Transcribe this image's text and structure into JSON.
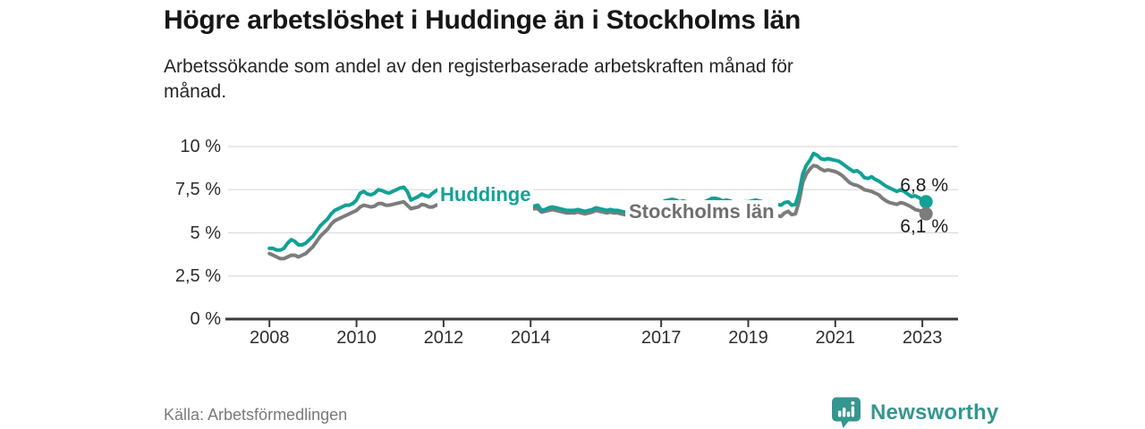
{
  "header": {
    "title": "Högre arbetslöshet i Huddinge än i Stockholms län",
    "subtitle": "Arbetssökande som andel av den registerbaserade arbetskraften månad för månad."
  },
  "footer": {
    "source": "Källa: Arbetsförmedlingen",
    "brand": "Newsworthy"
  },
  "chart_data": {
    "type": "line",
    "title": "Högre arbetslöshet i Huddinge än i Stockholms län",
    "subtitle": "Arbetssökande som andel av den registerbaserade arbetskraften månad för månad.",
    "xlabel": "",
    "ylabel": "",
    "x_unit": "month",
    "x_start_year": 2008,
    "x_end": "2023-02",
    "ylim": [
      0,
      10
    ],
    "grid": true,
    "legend_position": "inline-labels",
    "y_ticks": [
      {
        "label": "0 %",
        "value": 0
      },
      {
        "label": "2,5 %",
        "value": 2.5
      },
      {
        "label": "5 %",
        "value": 5
      },
      {
        "label": "7,5 %",
        "value": 7.5
      },
      {
        "label": "10 %",
        "value": 10
      }
    ],
    "x_ticks": [
      {
        "label": "2008",
        "value": 2008
      },
      {
        "label": "2010",
        "value": 2010
      },
      {
        "label": "2012",
        "value": 2012
      },
      {
        "label": "2014",
        "value": 2014
      },
      {
        "label": "2017",
        "value": 2017
      },
      {
        "label": "2019",
        "value": 2019
      },
      {
        "label": "2021",
        "value": 2021
      },
      {
        "label": "2023",
        "value": 2023
      }
    ],
    "series": [
      {
        "name": "Huddinge",
        "color": "#12A195",
        "end_label": "6,8 %",
        "end_value": 6.8,
        "values": [
          4.1,
          4.1,
          4.0,
          4.0,
          4.1,
          4.4,
          4.6,
          4.5,
          4.3,
          4.3,
          4.4,
          4.6,
          4.8,
          5.1,
          5.4,
          5.6,
          5.8,
          6.1,
          6.3,
          6.4,
          6.5,
          6.6,
          6.6,
          6.7,
          6.9,
          7.3,
          7.4,
          7.25,
          7.2,
          7.3,
          7.5,
          7.45,
          7.35,
          7.3,
          7.4,
          7.5,
          7.6,
          7.65,
          7.4,
          6.9,
          7.0,
          7.1,
          7.25,
          7.15,
          7.1,
          7.3,
          7.45,
          7.55,
          7.3,
          7.1,
          6.95,
          7.0,
          7.05,
          7.0,
          7.1,
          7.05,
          6.95,
          6.9,
          6.85,
          6.8,
          6.8,
          6.75,
          6.7,
          6.65,
          6.6,
          6.6,
          6.55,
          6.5,
          6.5,
          6.45,
          6.4,
          6.45,
          6.5,
          6.55,
          6.6,
          6.3,
          6.35,
          6.45,
          6.5,
          6.45,
          6.4,
          6.35,
          6.3,
          6.3,
          6.3,
          6.35,
          6.3,
          6.25,
          6.3,
          6.35,
          6.45,
          6.4,
          6.35,
          6.3,
          6.35,
          6.3,
          6.3,
          6.25,
          6.2,
          6.2,
          6.25,
          6.3,
          6.5,
          6.55,
          6.5,
          6.45,
          6.5,
          6.55,
          6.7,
          6.85,
          6.9,
          6.95,
          6.9,
          6.8,
          6.85,
          6.8,
          6.7,
          6.65,
          6.7,
          6.75,
          6.8,
          6.9,
          7.0,
          7.0,
          6.95,
          6.85,
          6.9,
          6.85,
          6.75,
          6.7,
          6.75,
          6.8,
          6.8,
          6.85,
          6.9,
          6.85,
          6.8,
          6.75,
          6.8,
          6.75,
          6.65,
          6.6,
          6.75,
          6.8,
          6.6,
          6.65,
          7.3,
          8.4,
          8.9,
          9.2,
          9.6,
          9.5,
          9.3,
          9.25,
          9.3,
          9.25,
          9.2,
          9.15,
          9.0,
          8.85,
          8.7,
          8.55,
          8.6,
          8.45,
          8.2,
          8.15,
          8.25,
          8.1,
          8.0,
          7.85,
          7.7,
          7.6,
          7.5,
          7.4,
          7.5,
          7.4,
          7.25,
          7.1,
          7.15,
          7.05,
          6.9,
          6.8
        ]
      },
      {
        "name": "Stockholms län",
        "color": "#7C7C7C",
        "end_label": "6,1 %",
        "end_value": 6.1,
        "values": [
          3.8,
          3.7,
          3.6,
          3.5,
          3.5,
          3.6,
          3.7,
          3.7,
          3.6,
          3.7,
          3.8,
          4.0,
          4.2,
          4.5,
          4.8,
          5.0,
          5.2,
          5.5,
          5.7,
          5.8,
          5.9,
          6.0,
          6.1,
          6.2,
          6.3,
          6.5,
          6.6,
          6.55,
          6.5,
          6.55,
          6.7,
          6.7,
          6.6,
          6.6,
          6.65,
          6.7,
          6.75,
          6.8,
          6.6,
          6.4,
          6.45,
          6.5,
          6.65,
          6.6,
          6.5,
          6.5,
          6.6,
          6.65,
          6.6,
          6.5,
          6.4,
          6.35,
          6.4,
          6.45,
          6.5,
          6.45,
          6.35,
          6.3,
          6.3,
          6.3,
          6.35,
          6.4,
          6.4,
          6.35,
          6.3,
          6.35,
          6.4,
          6.4,
          6.35,
          6.3,
          6.3,
          6.35,
          6.4,
          6.4,
          6.4,
          6.2,
          6.25,
          6.3,
          6.35,
          6.3,
          6.25,
          6.2,
          6.15,
          6.15,
          6.15,
          6.2,
          6.15,
          6.1,
          6.15,
          6.2,
          6.3,
          6.25,
          6.2,
          6.15,
          6.2,
          6.15,
          6.15,
          6.1,
          6.05,
          6.0,
          6.05,
          6.1,
          6.3,
          6.35,
          6.3,
          6.25,
          6.3,
          6.35,
          6.3,
          6.4,
          6.45,
          6.5,
          6.45,
          6.35,
          6.4,
          6.35,
          6.25,
          6.2,
          6.2,
          6.25,
          6.25,
          6.3,
          6.35,
          6.35,
          6.3,
          6.2,
          6.25,
          6.2,
          6.1,
          6.05,
          6.05,
          6.1,
          6.1,
          6.15,
          6.2,
          6.15,
          6.1,
          6.05,
          6.1,
          6.05,
          6.0,
          5.95,
          6.15,
          6.25,
          6.05,
          6.1,
          6.8,
          7.9,
          8.4,
          8.7,
          8.9,
          8.85,
          8.7,
          8.6,
          8.65,
          8.6,
          8.55,
          8.45,
          8.3,
          8.1,
          7.9,
          7.8,
          7.75,
          7.65,
          7.5,
          7.45,
          7.4,
          7.3,
          7.2,
          7.0,
          6.85,
          6.75,
          6.7,
          6.65,
          6.75,
          6.7,
          6.6,
          6.5,
          6.35,
          6.3,
          6.25,
          6.1
        ]
      }
    ]
  }
}
